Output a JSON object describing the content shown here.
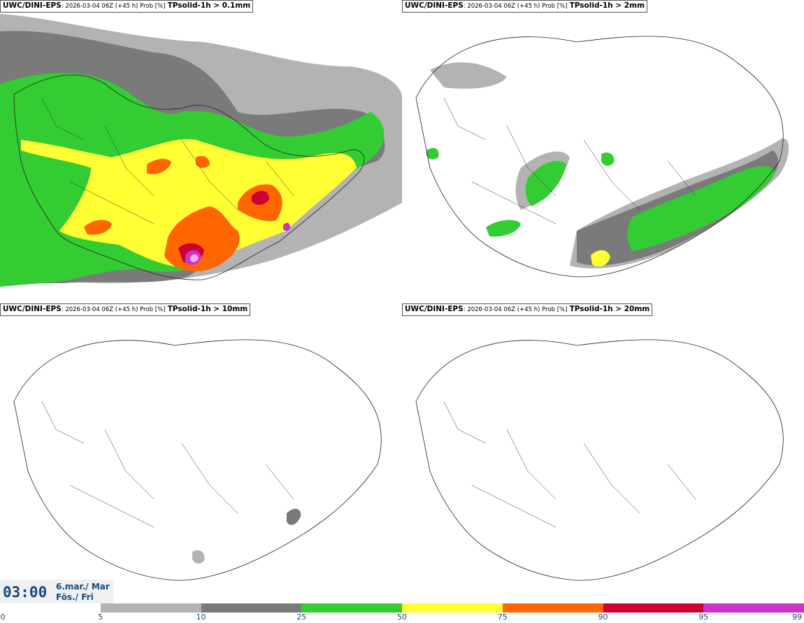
{
  "panels": [
    {
      "model": "UWC/DINI-EPS",
      "run": ": 2026-03-04 06Z (+45 h) Prob [%]",
      "param": "TPsolid-1h > 0.1mm"
    },
    {
      "model": "UWC/DINI-EPS",
      "run": ": 2026-03-04 06Z (+45 h) Prob [%]",
      "param": "TPsolid-1h > 2mm"
    },
    {
      "model": "UWC/DINI-EPS",
      "run": ": 2026-03-04 06Z (+45 h) Prob [%]",
      "param": "TPsolid-1h > 10mm"
    },
    {
      "model": "UWC/DINI-EPS",
      "run": ": 2026-03-04 06Z (+45 h) Prob [%]",
      "param": "TPsolid-1h > 20mm"
    }
  ],
  "valid_time": {
    "time": "03:00",
    "date_line1": "6.mar./ Mar",
    "date_line2": "Fös./ Fri"
  },
  "colorbar": {
    "ticks": [
      "0",
      "5",
      "10",
      "25",
      "50",
      "75",
      "90",
      "95",
      "99"
    ],
    "colors": [
      "#ffffff",
      "#b3b3b3",
      "#7a7a7a",
      "#33cc33",
      "#ffff33",
      "#ff6600",
      "#cc0033",
      "#cc33cc",
      "#f0b0f0"
    ]
  }
}
